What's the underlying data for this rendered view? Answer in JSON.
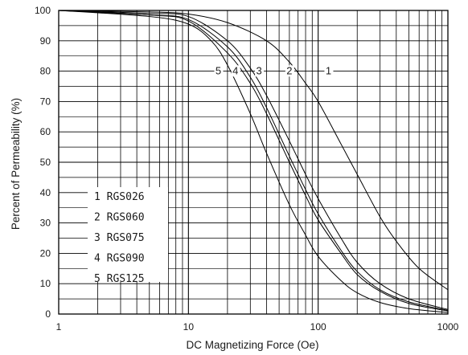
{
  "chart_data": {
    "type": "line",
    "xlabel": "DC Magnetizing Force (Oe)",
    "ylabel": "Percent of Permeability (%)",
    "x_scale": "log",
    "xlim": [
      1,
      1000
    ],
    "ylim": [
      0,
      100
    ],
    "x_tick_labels": [
      "1",
      "10",
      "100",
      "1000"
    ],
    "y_tick_labels": [
      "0",
      "10",
      "20",
      "30",
      "40",
      "50",
      "60",
      "70",
      "80",
      "90",
      "100"
    ],
    "grid": true,
    "legend": {
      "placement": "bottom-left",
      "entries": [
        "1 RGS026",
        "2 RGS060",
        "3 RGS075",
        "4 RGS090",
        "5 RGS125"
      ]
    },
    "series": [
      {
        "name": "1 RGS026",
        "curve_label": "1",
        "label_at": [
          120,
          79
        ],
        "x": [
          1,
          5,
          10,
          20,
          40,
          60,
          80,
          100,
          150,
          200,
          300,
          400,
          600,
          1000
        ],
        "y": [
          100,
          99.5,
          98.8,
          96,
          90,
          83,
          76,
          70,
          56,
          46,
          32,
          24,
          15,
          8
        ]
      },
      {
        "name": "2 RGS060",
        "curve_label": "2",
        "label_at": [
          60,
          79
        ],
        "x": [
          1,
          5,
          10,
          20,
          30,
          40,
          60,
          80,
          100,
          150,
          200,
          300,
          500,
          1000
        ],
        "y": [
          100,
          99,
          98,
          90,
          81,
          72,
          57,
          46,
          38,
          25,
          17,
          10,
          5,
          1.5
        ]
      },
      {
        "name": "3 RGS075",
        "curve_label": "3",
        "label_at": [
          35,
          79
        ],
        "x": [
          1,
          5,
          10,
          20,
          30,
          40,
          60,
          80,
          100,
          150,
          200,
          300,
          500,
          1000
        ],
        "y": [
          100,
          98.5,
          97,
          88,
          78,
          68,
          52,
          41,
          33,
          21,
          14,
          8,
          4,
          1.2
        ]
      },
      {
        "name": "4 RGS090",
        "curve_label": "4",
        "label_at": [
          23,
          79
        ],
        "x": [
          1,
          5,
          10,
          20,
          30,
          40,
          60,
          80,
          100,
          150,
          200,
          300,
          500,
          1000
        ],
        "y": [
          100,
          98.5,
          96.5,
          86,
          76,
          66,
          50,
          39,
          31,
          20,
          13,
          7.5,
          3.5,
          1
        ]
      },
      {
        "name": "5 RGS125",
        "curve_label": "5",
        "label_at": [
          17,
          79
        ],
        "x": [
          1,
          5,
          10,
          15,
          20,
          30,
          40,
          60,
          80,
          100,
          150,
          200,
          300,
          500,
          1000
        ],
        "y": [
          100,
          98,
          95.5,
          90,
          82,
          66,
          53,
          36,
          26,
          19,
          11,
          7,
          3.8,
          1.8,
          0.5
        ]
      }
    ]
  }
}
